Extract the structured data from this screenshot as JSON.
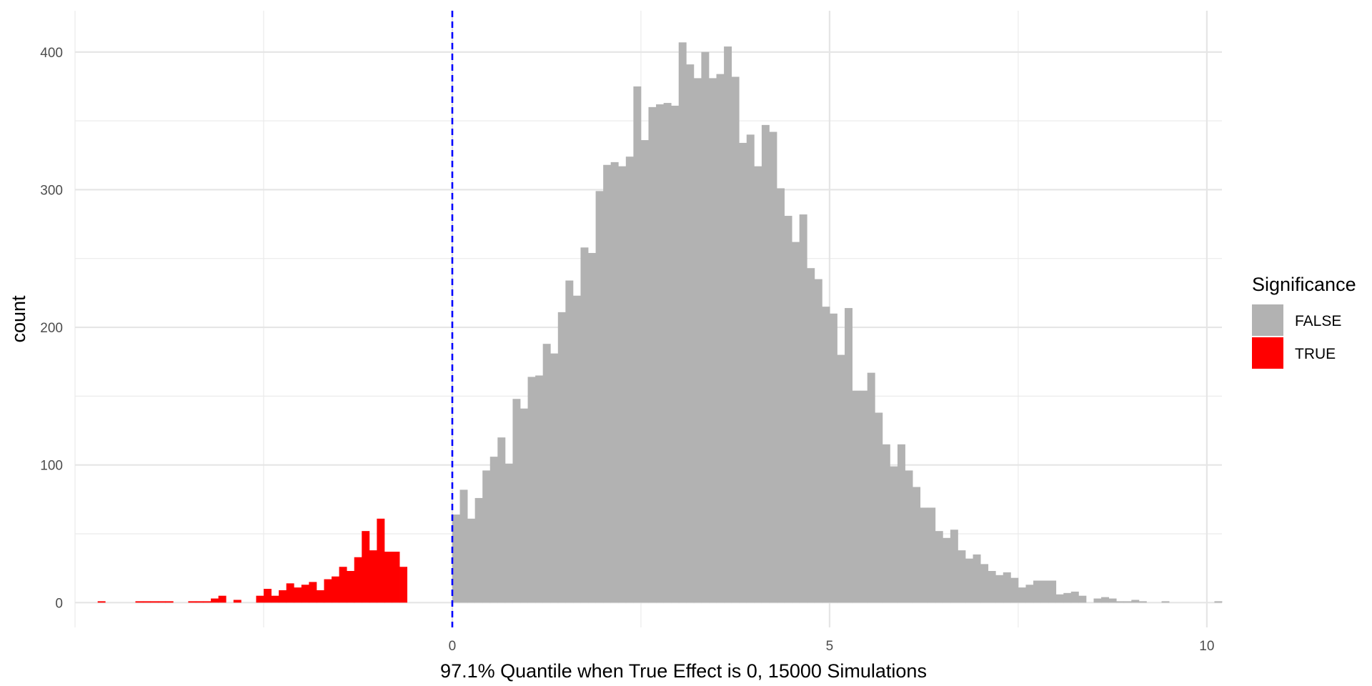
{
  "chart_data": {
    "type": "bar",
    "title": "",
    "xlabel": "97.1% Quantile when True Effect is 0, 15000 Simulations",
    "ylabel": "count",
    "xlim": [
      -5,
      10.2
    ],
    "ylim": [
      -18,
      430
    ],
    "x_ticks": [
      0,
      5,
      10
    ],
    "x_minor_ticks": [
      -5,
      -2.5,
      2.5,
      7.5
    ],
    "y_ticks": [
      0,
      100,
      200,
      300,
      400
    ],
    "y_minor_ticks": [
      50,
      150,
      250,
      350
    ],
    "grid": true,
    "bin_width": 0.1,
    "first_bin_start": -4.9,
    "reference_line": {
      "x": 0,
      "color": "#0000ff",
      "style": "dashed"
    },
    "legend": {
      "title": "Significance",
      "position": "right",
      "entries": [
        {
          "label": "FALSE",
          "color": "#b2b2b2"
        },
        {
          "label": "TRUE",
          "color": "#ff0000"
        }
      ]
    },
    "series": [
      {
        "name": "FALSE",
        "color": "#b2b2b2",
        "values": [
          0,
          0,
          0,
          0,
          0,
          0,
          0,
          0,
          0,
          0,
          0,
          0,
          0,
          0,
          0,
          0,
          0,
          0,
          0,
          0,
          0,
          0,
          0,
          0,
          0,
          0,
          0,
          0,
          0,
          0,
          0,
          0,
          0,
          0,
          0,
          0,
          0,
          0,
          0,
          0,
          0,
          0,
          0,
          0,
          0,
          0,
          0,
          0,
          0,
          64,
          82,
          61,
          76,
          96,
          106,
          120,
          101,
          148,
          141,
          164,
          165,
          188,
          181,
          211,
          234,
          223,
          258,
          254,
          299,
          318,
          320,
          317,
          324,
          375,
          336,
          360,
          362,
          363,
          361,
          407,
          391,
          381,
          400,
          381,
          384,
          404,
          382,
          334,
          340,
          317,
          347,
          342,
          301,
          281,
          262,
          282,
          243,
          235,
          215,
          210,
          180,
          214,
          154,
          154,
          167,
          138,
          115,
          99,
          115,
          96,
          84,
          69,
          69,
          52,
          47,
          53,
          38,
          32,
          35,
          28,
          23,
          20,
          22,
          18,
          11,
          13,
          16,
          16,
          16,
          6,
          7,
          8,
          5,
          0,
          3,
          4,
          3,
          1,
          1,
          2,
          1,
          0,
          0,
          1,
          0,
          0,
          0,
          0,
          0,
          0,
          1,
          0,
          0,
          0
        ]
      },
      {
        "name": "TRUE",
        "color": "#ff0000",
        "values": [
          0,
          0,
          1,
          0,
          0,
          0,
          0,
          1,
          1,
          1,
          1,
          1,
          0,
          0,
          1,
          1,
          1,
          3,
          5,
          0,
          2,
          0,
          0,
          5,
          10,
          5,
          9,
          14,
          11,
          13,
          15,
          9,
          17,
          19,
          26,
          23,
          33,
          52,
          38,
          61,
          37,
          37,
          26,
          0,
          0,
          0,
          0,
          0,
          0,
          0,
          0,
          0,
          0,
          0,
          0,
          0,
          0,
          0,
          0,
          0,
          0,
          0,
          0,
          0,
          0,
          0,
          0,
          0,
          0,
          0,
          0,
          0,
          0,
          0,
          0,
          0,
          0,
          0,
          0,
          0,
          0,
          0,
          0,
          0,
          0,
          0,
          0,
          0,
          0,
          0,
          0,
          0,
          0,
          0,
          0,
          0,
          0,
          0,
          0,
          0,
          0,
          0,
          0,
          0,
          0,
          0,
          0,
          0,
          0,
          0,
          0,
          0,
          0,
          0,
          0,
          0,
          0,
          0,
          0,
          0,
          0,
          0,
          0,
          0,
          0,
          0,
          0,
          0,
          0,
          0,
          0,
          0,
          0,
          0,
          0,
          0,
          0,
          0,
          0,
          0,
          0,
          0,
          0,
          0,
          0,
          0,
          0,
          0,
          0,
          0,
          0,
          0,
          0,
          0
        ]
      }
    ]
  }
}
